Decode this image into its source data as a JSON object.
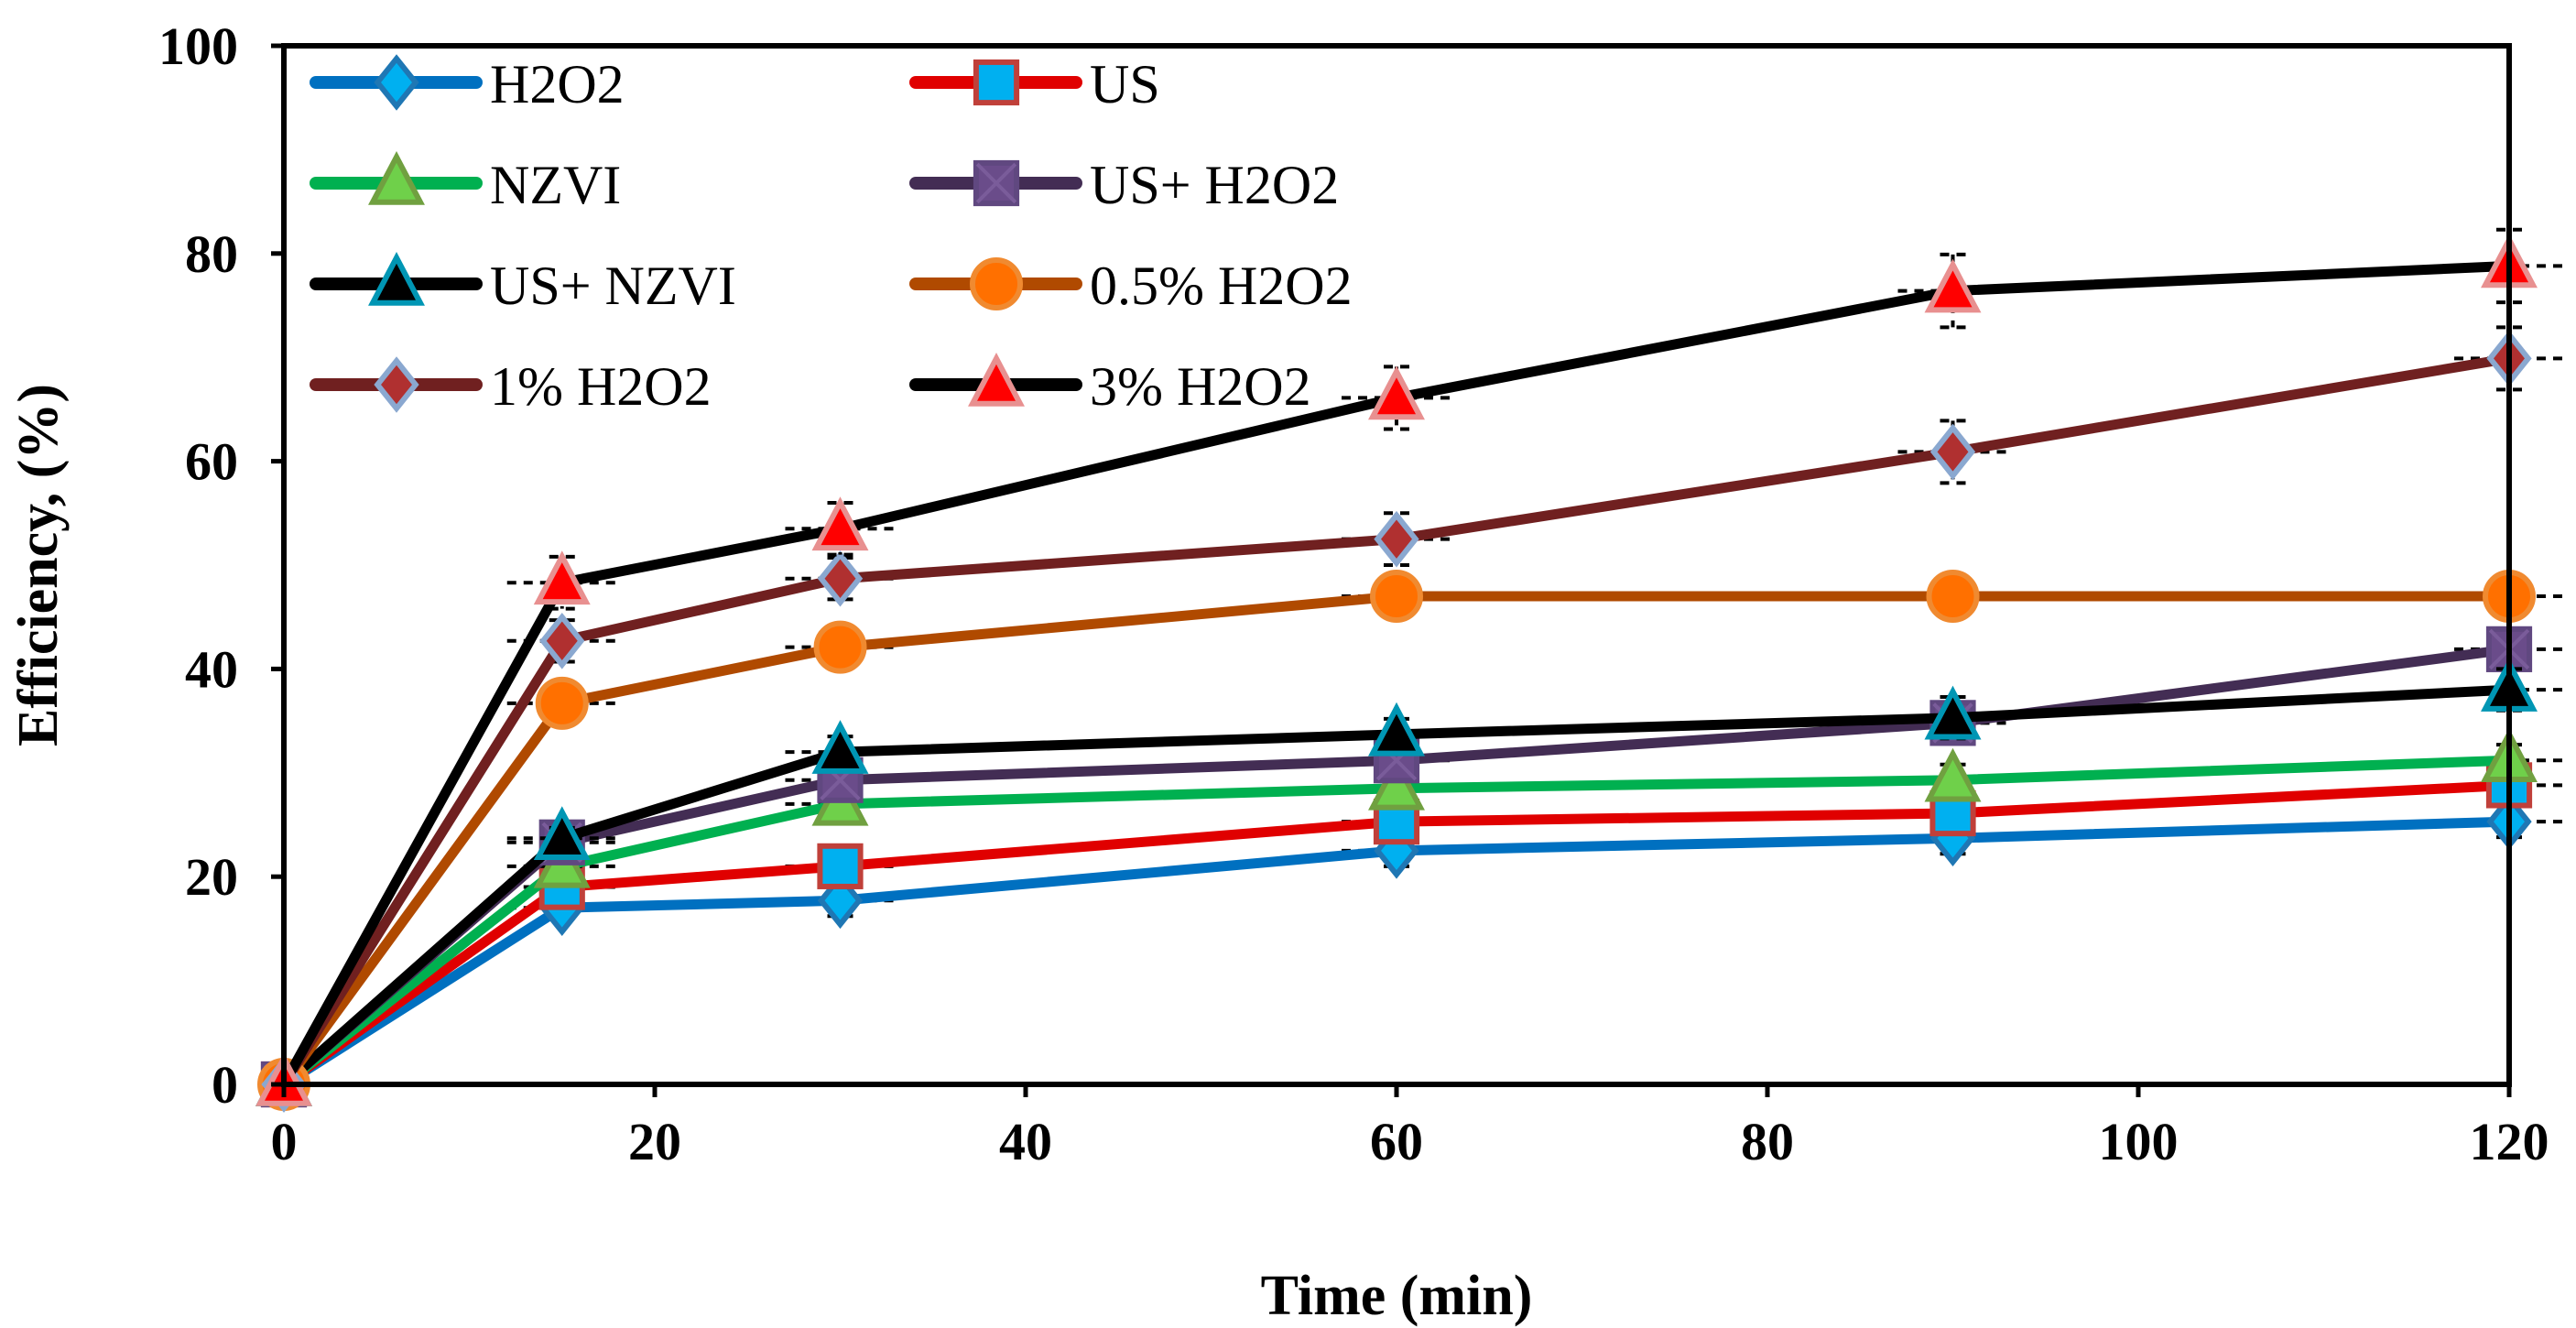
{
  "chart_data": {
    "type": "line",
    "title": "",
    "xlabel": "Time (min)",
    "ylabel": "Efficiency, (%)",
    "xlim": [
      0,
      120
    ],
    "ylim": [
      0,
      100
    ],
    "xticks": [
      0,
      20,
      40,
      60,
      80,
      100,
      120
    ],
    "yticks": [
      0,
      20,
      40,
      60,
      80,
      100
    ],
    "grid": false,
    "legend_placement": "top-left",
    "x": [
      0,
      15,
      30,
      60,
      90,
      120
    ],
    "series": [
      {
        "name": "H2O2",
        "values": [
          0,
          17,
          17.7,
          22.5,
          23.7,
          25.3
        ],
        "error": [
          0,
          1,
          1.5,
          1.5,
          1.5,
          1.5
        ],
        "line": "#0070C0",
        "marker": "diamond",
        "fill": "#00B0F0",
        "stroke": "#1F77B4"
      },
      {
        "name": "US",
        "values": [
          0,
          19,
          21,
          25.3,
          26.1,
          28.8
        ],
        "error": [
          0,
          1,
          1.5,
          1.5,
          1.5,
          1.5
        ],
        "line": "#E00000",
        "marker": "square",
        "fill": "#00B0F0",
        "stroke": "#C0403A"
      },
      {
        "name": "NZVI",
        "values": [
          0,
          21,
          27,
          28.5,
          29.3,
          31.2
        ],
        "error": [
          0,
          1,
          1.5,
          1.5,
          1.5,
          1.5
        ],
        "line": "#00B050",
        "marker": "triangle",
        "fill": "#6FD04A",
        "stroke": "#70A040"
      },
      {
        "name": "US+ H2O2",
        "values": [
          0,
          23.3,
          29.3,
          31.2,
          34.8,
          41.9
        ],
        "error": [
          0,
          1,
          1.5,
          1.5,
          2,
          2
        ],
        "line": "#432D54",
        "marker": "xsquare",
        "fill": "#6A4C8A",
        "stroke": "#604880"
      },
      {
        "name": "US+ NZVI",
        "values": [
          0,
          23.7,
          32,
          33.7,
          35.3,
          38
        ],
        "error": [
          0,
          1,
          1.5,
          1.5,
          2,
          2
        ],
        "line": "#000000",
        "marker": "triangle",
        "fill": "#000000",
        "stroke": "#0096B4"
      },
      {
        "name": "0.5% H2O2",
        "values": [
          0,
          36.7,
          42.1,
          47,
          47,
          47
        ],
        "error": [
          0,
          2,
          2,
          2,
          2,
          2
        ],
        "line": "#B04A00",
        "marker": "circle",
        "fill": "#FF7000",
        "stroke": "#F08A30"
      },
      {
        "name": "1% H2O2",
        "values": [
          0,
          42.7,
          48.7,
          52.5,
          60.9,
          69.9
        ],
        "error": [
          0,
          2,
          2,
          2.5,
          3,
          3
        ],
        "line": "#702020",
        "marker": "diamond",
        "fill": "#B03030",
        "stroke": "#8AA8D0"
      },
      {
        "name": "3% H2O2",
        "values": [
          0,
          48.3,
          53.5,
          66.1,
          76.4,
          78.8
        ],
        "error": [
          0,
          2.5,
          2.5,
          3,
          3.5,
          3.5
        ],
        "line": "#000000",
        "marker": "triangle",
        "fill": "#FF0000",
        "stroke": "#E89090"
      }
    ]
  }
}
